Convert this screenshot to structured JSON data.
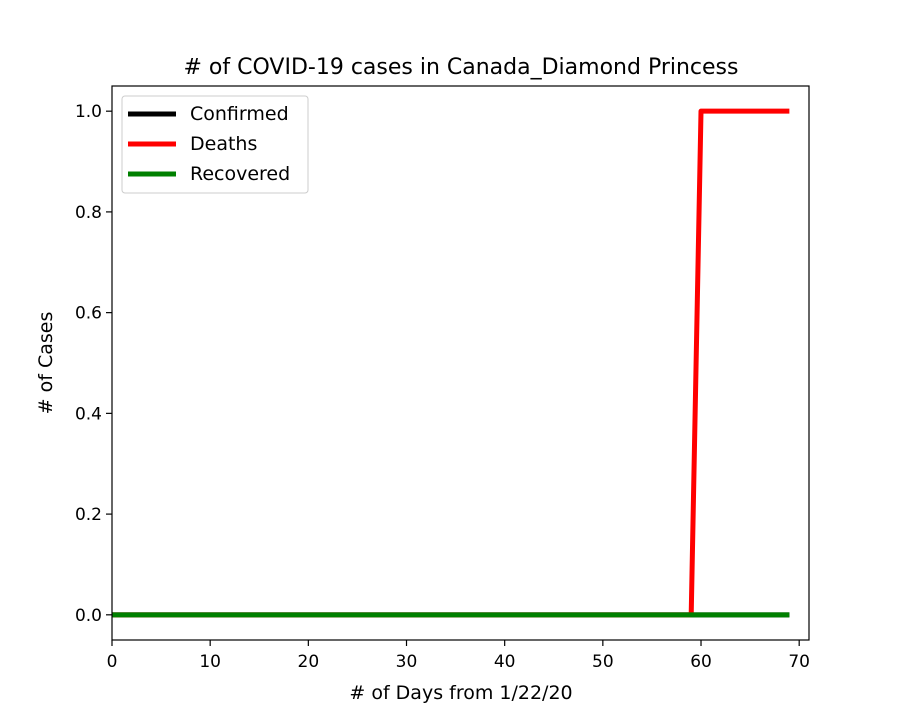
{
  "chart_data": {
    "type": "line",
    "title": "# of COVID-19 cases in Canada_Diamond Princess",
    "xlabel": "# of Days from 1/22/20",
    "ylabel": "# of Cases",
    "xlim": [
      0,
      71
    ],
    "ylim": [
      -0.05,
      1.05
    ],
    "x_ticks": [
      0,
      10,
      20,
      30,
      40,
      50,
      60,
      70
    ],
    "x_tick_labels": [
      "0",
      "10",
      "20",
      "30",
      "40",
      "50",
      "60",
      "70"
    ],
    "y_ticks": [
      0.0,
      0.2,
      0.4,
      0.6,
      0.8,
      1.0
    ],
    "y_tick_labels": [
      "0.0",
      "0.2",
      "0.4",
      "0.6",
      "0.8",
      "1.0"
    ],
    "grid": false,
    "legend_position": "top-left",
    "series": [
      {
        "name": "Confirmed",
        "color": "#000000",
        "points": [
          [
            0,
            0
          ],
          [
            69,
            0
          ]
        ]
      },
      {
        "name": "Deaths",
        "color": "#ff0000",
        "points": [
          [
            0,
            0
          ],
          [
            59,
            0
          ],
          [
            60,
            1
          ],
          [
            69,
            1
          ]
        ]
      },
      {
        "name": "Recovered",
        "color": "#008000",
        "points": [
          [
            0,
            0
          ],
          [
            69,
            0
          ]
        ]
      }
    ]
  }
}
